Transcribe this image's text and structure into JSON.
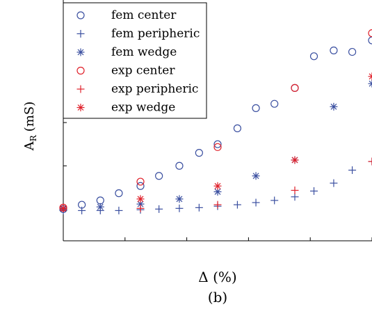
{
  "chart_data": {
    "type": "scatter",
    "title": "",
    "xlabel": "Δ (%)",
    "ylabel": "A",
    "ylabel_sub": "R",
    "ylabel_unit": "(mS)",
    "caption": "(b)",
    "grid": false,
    "legend_position": "top-left",
    "tick_labels_visible": false,
    "xlim": [
      0,
      25
    ],
    "ylim": [
      -2.2,
      14.5
    ],
    "xticks": [
      0,
      5,
      10,
      15,
      20,
      25
    ],
    "yticks": [
      0,
      3,
      6,
      9,
      12
    ],
    "series": [
      {
        "name": "fem center",
        "marker": "circle",
        "color": "#3a4fa0",
        "x": [
          0,
          1.5,
          3,
          4.5,
          6.25,
          7.75,
          9.4,
          11,
          12.5,
          14.1,
          15.6,
          17.1,
          18.75,
          20.3,
          21.9,
          23.4,
          25
        ],
        "y": [
          0,
          0.3,
          0.6,
          1.1,
          1.6,
          2.3,
          3.0,
          3.9,
          4.5,
          5.6,
          7.0,
          7.3,
          8.4,
          10.6,
          11.0,
          10.9,
          11.7
        ]
      },
      {
        "name": "fem peripheric",
        "marker": "plus",
        "color": "#3a4fa0",
        "x": [
          0,
          1.5,
          3,
          4.5,
          6.25,
          7.75,
          9.4,
          11,
          12.5,
          14.1,
          15.6,
          17.1,
          18.75,
          20.3,
          21.9,
          23.4,
          25
        ],
        "y": [
          -0.1,
          -0.1,
          -0.1,
          -0.1,
          -0.05,
          0,
          0.05,
          0.1,
          0.2,
          0.3,
          0.45,
          0.6,
          0.85,
          1.25,
          1.8,
          2.7,
          3.3
        ]
      },
      {
        "name": "fem wedge",
        "marker": "asterisk",
        "color": "#3a4fa0",
        "x": [
          0,
          3,
          6.25,
          9.4,
          12.5,
          15.6,
          18.75,
          21.9,
          25
        ],
        "y": [
          0,
          0.15,
          0.35,
          0.7,
          1.2,
          2.3,
          3.4,
          7.1,
          8.7
        ]
      },
      {
        "name": "exp center",
        "marker": "circle",
        "color": "#e0202a",
        "x": [
          0,
          6.25,
          12.5,
          18.75,
          25
        ],
        "y": [
          0.1,
          1.9,
          4.3,
          8.4,
          12.2
        ]
      },
      {
        "name": "exp peripheric",
        "marker": "plus",
        "color": "#e0202a",
        "x": [
          0,
          6.25,
          12.5,
          18.75,
          25
        ],
        "y": [
          0.05,
          0.05,
          0.3,
          1.3,
          3.3
        ]
      },
      {
        "name": "exp wedge",
        "marker": "asterisk",
        "color": "#e0202a",
        "x": [
          0,
          6.25,
          12.5,
          18.75,
          25
        ],
        "y": [
          0.05,
          0.7,
          1.6,
          3.4,
          9.2
        ]
      }
    ]
  }
}
